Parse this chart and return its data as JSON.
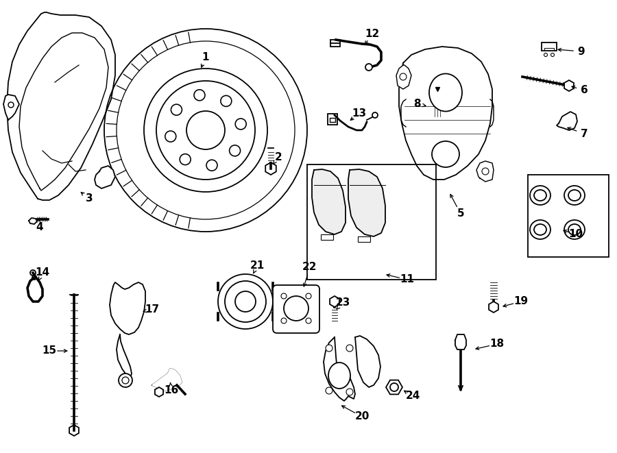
{
  "bg_color": "#ffffff",
  "line_color": "#000000",
  "line_width": 1.3,
  "fig_width": 9.0,
  "fig_height": 6.61
}
